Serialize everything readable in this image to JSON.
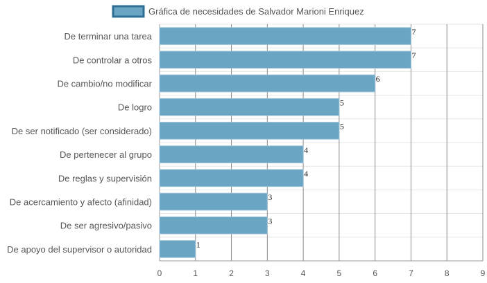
{
  "chart_data": {
    "type": "bar",
    "orientation": "horizontal",
    "legend": "top-center",
    "grid": true,
    "xlim": [
      0,
      9
    ],
    "x_ticks": [
      "0",
      "1",
      "2",
      "3",
      "4",
      "5",
      "6",
      "7",
      "8",
      "9"
    ],
    "categories": [
      "De terminar una tarea",
      "De controlar a otros",
      "De cambio/no modificar",
      "De logro",
      "De ser notificado (ser considerado)",
      "De pertenecer al grupo",
      "De reglas y supervisión",
      "De acercamiento y afecto (afinidad)",
      "De ser agresivo/pasivo",
      "De apoyo del supervisor o autoridad"
    ],
    "series": [
      {
        "name": "Gráfica de necesidades de Salvador Marioni Enriquez",
        "color": "#6aa5c4",
        "border_color": "#2f6f95",
        "values": [
          7,
          7,
          6,
          5,
          5,
          4,
          4,
          3,
          3,
          1
        ]
      }
    ]
  }
}
